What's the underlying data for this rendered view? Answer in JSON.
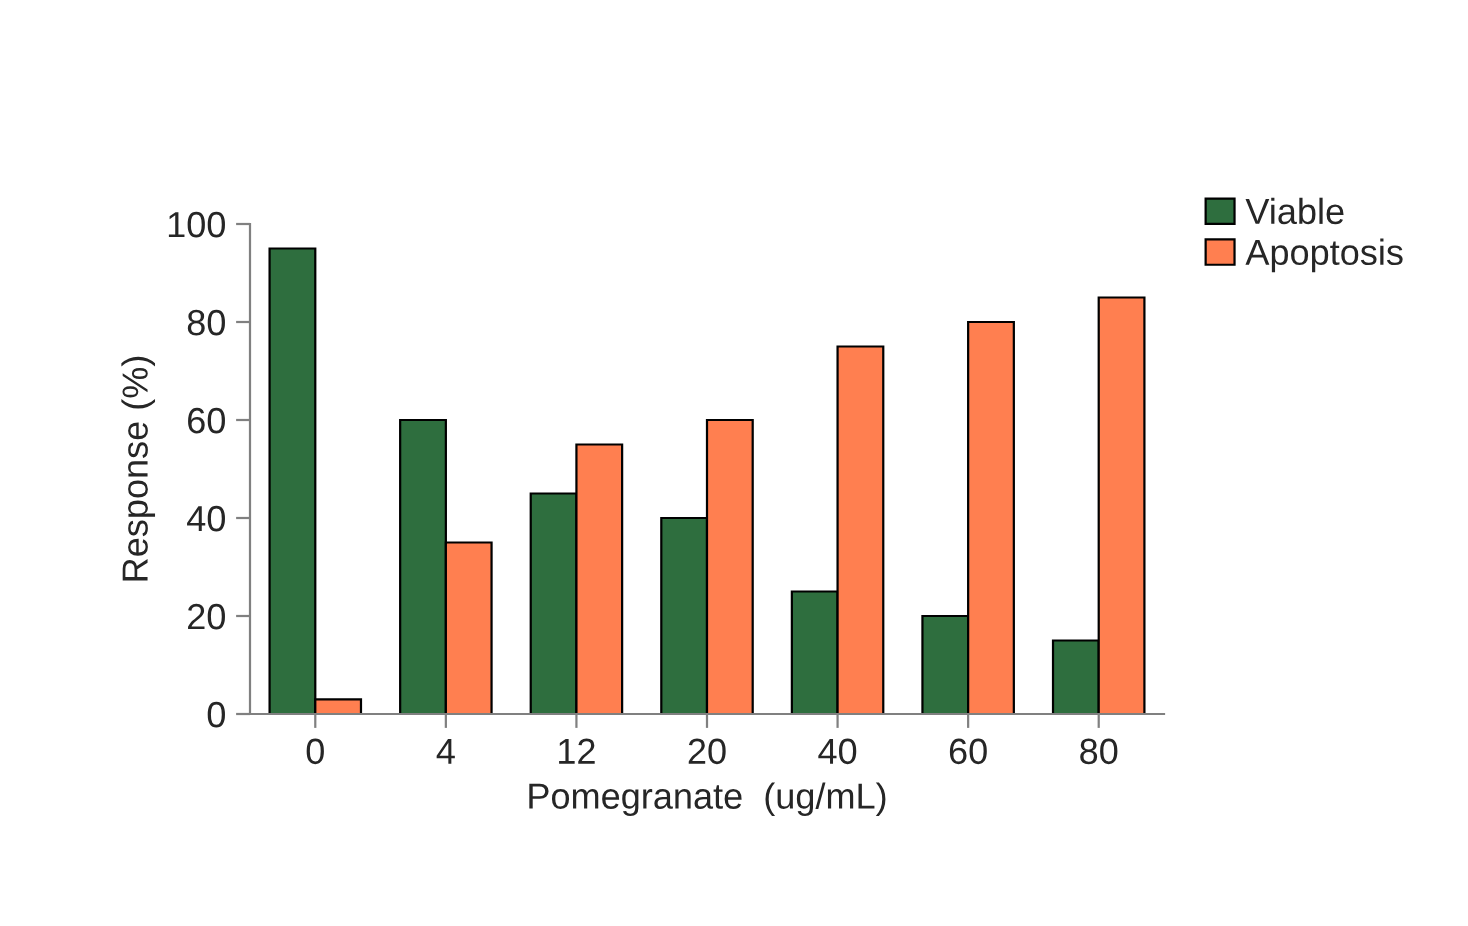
{
  "chart_data": {
    "type": "bar",
    "xlabel": "Pomegranate  (ug/mL)",
    "ylabel": "Response (%)",
    "categories": [
      "0",
      "4",
      "12",
      "20",
      "40",
      "60",
      "80"
    ],
    "series": [
      {
        "name": "Viable",
        "color": "#2e6e3e",
        "values": [
          95,
          60,
          45,
          40,
          25,
          20,
          15
        ]
      },
      {
        "name": "Apoptosis",
        "color": "#ff7f50",
        "values": [
          3,
          35,
          55,
          60,
          75,
          80,
          85
        ]
      }
    ],
    "ylim": [
      0,
      100
    ],
    "yticks": [
      0,
      20,
      40,
      60,
      80,
      100
    ],
    "grid": false,
    "legend": "top right"
  }
}
